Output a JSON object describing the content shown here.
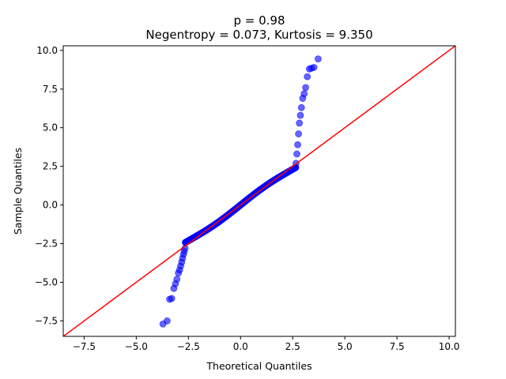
{
  "chart_data": {
    "type": "scatter",
    "title": "p = 0.98",
    "subtitle": "Negentropy = 0.073, Kurtosis = 9.350",
    "xlabel": "Theoretical Quantiles",
    "ylabel": "Sample Quantiles",
    "xlim": [
      -8.5,
      10.3
    ],
    "ylim": [
      -8.5,
      10.3
    ],
    "x_ticks": [
      -7.5,
      -5.0,
      -2.5,
      0.0,
      2.5,
      5.0,
      7.5,
      10.0
    ],
    "x_tick_labels": [
      "−7.5",
      "−5.0",
      "−2.5",
      "0.0",
      "2.5",
      "5.0",
      "7.5",
      "10.0"
    ],
    "y_ticks": [
      -7.5,
      -5.0,
      -2.5,
      0.0,
      2.5,
      5.0,
      7.5,
      10.0
    ],
    "y_tick_labels": [
      "−7.5",
      "−5.0",
      "−2.5",
      "0.0",
      "2.5",
      "5.0",
      "7.5",
      "10.0"
    ],
    "grid": false,
    "reference_line": {
      "slope": 1,
      "intercept": 0,
      "color": "#ff0000"
    },
    "point_color": "#0000ff",
    "outlier_points": {
      "x": [
        -3.72,
        -3.52,
        -3.4,
        -3.3,
        -3.2,
        -3.12,
        -3.05,
        -2.98,
        -2.92,
        -2.87,
        -2.82,
        -2.78,
        -2.74,
        -2.7,
        -2.66,
        2.66,
        2.7,
        2.74,
        2.78,
        2.82,
        2.87,
        2.92,
        2.98,
        3.05,
        3.12,
        3.2,
        3.3,
        3.4,
        3.52,
        3.72
      ],
      "y": [
        -7.7,
        -7.5,
        -6.1,
        -6.05,
        -5.4,
        -5.1,
        -4.8,
        -4.4,
        -4.2,
        -3.95,
        -3.7,
        -3.45,
        -3.2,
        -3.0,
        -2.8,
        2.7,
        3.3,
        3.9,
        4.6,
        5.3,
        5.8,
        6.3,
        6.9,
        7.2,
        7.6,
        8.3,
        8.8,
        8.85,
        8.9,
        9.45
      ]
    },
    "body_points": {
      "x_range": [
        -2.65,
        2.65
      ],
      "count": 260,
      "note": "dense points along the reference line with a slight S-shape"
    }
  }
}
